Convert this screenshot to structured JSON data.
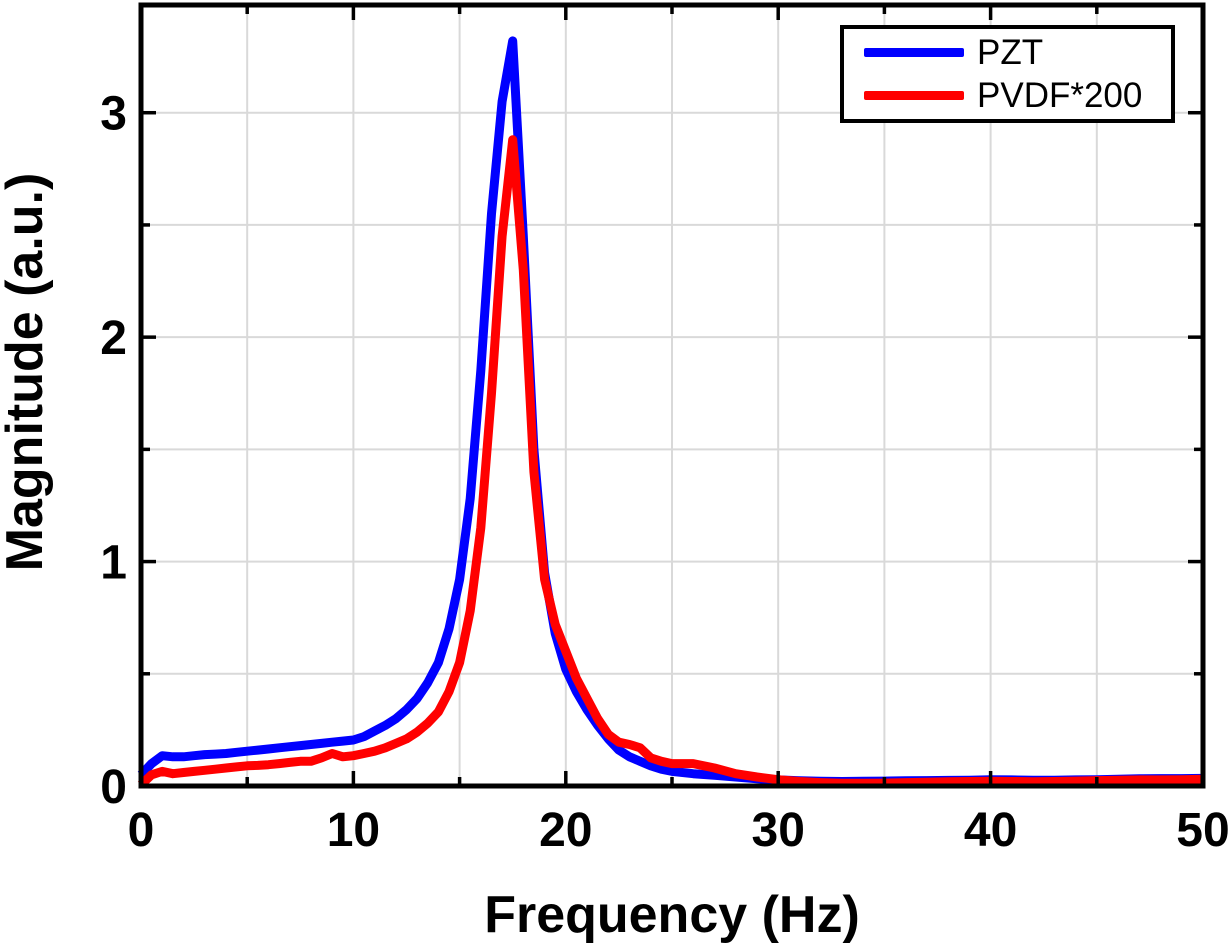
{
  "chart_data": {
    "type": "line",
    "title": "",
    "xlabel": "Frequency (Hz)",
    "ylabel": "Magnitude (a.u.)",
    "xlim": [
      0,
      50
    ],
    "ylim": [
      0,
      3.48
    ],
    "grid": true,
    "legend_position": "top-right",
    "colors": {
      "pzt": "#0000ff",
      "pvdf": "#ff0000",
      "grid": "#d9d9d9",
      "frame": "#000000",
      "background": "#ffffff"
    },
    "axes": {
      "x_major": [
        0,
        10,
        20,
        30,
        40,
        50
      ],
      "x_labels": [
        "0",
        "10",
        "20",
        "30",
        "40",
        "50"
      ],
      "x_minor": [
        5,
        15,
        25,
        35,
        45
      ],
      "x_grid": [
        5,
        10,
        15,
        20,
        25,
        30,
        35,
        40,
        45
      ],
      "y_major": [
        0,
        1,
        2,
        3
      ],
      "y_labels": [
        "0",
        "1",
        "2",
        "3"
      ],
      "y_minor": [
        0.5,
        1.5,
        2.5
      ],
      "y_grid": [
        0.5,
        1,
        1.5,
        2,
        2.5,
        3
      ]
    },
    "x": [
      0,
      0.5,
      1,
      1.5,
      2,
      2.5,
      3,
      3.5,
      4,
      4.5,
      5,
      5.5,
      6,
      6.5,
      7,
      7.5,
      8,
      8.5,
      9,
      9.5,
      10,
      10.5,
      11,
      11.5,
      12,
      12.5,
      13,
      13.5,
      14,
      14.5,
      15,
      15.5,
      16,
      16.5,
      17,
      17.5,
      18,
      18.5,
      19,
      19.5,
      20,
      20.5,
      21,
      21.5,
      22,
      22.5,
      23,
      23.5,
      24,
      24.5,
      25,
      26,
      27,
      28,
      29,
      30,
      31,
      32,
      33,
      34,
      35,
      36,
      37,
      38,
      39,
      40,
      41,
      42,
      43,
      44,
      45,
      46,
      47,
      48,
      49,
      50
    ],
    "series": [
      {
        "name": "PZT",
        "color": "#0000ff",
        "values": [
          0.05,
          0.1,
          0.135,
          0.13,
          0.13,
          0.135,
          0.14,
          0.142,
          0.145,
          0.15,
          0.155,
          0.16,
          0.165,
          0.17,
          0.175,
          0.18,
          0.185,
          0.19,
          0.195,
          0.2,
          0.205,
          0.22,
          0.245,
          0.27,
          0.3,
          0.34,
          0.39,
          0.46,
          0.55,
          0.7,
          0.92,
          1.28,
          1.85,
          2.55,
          3.05,
          3.32,
          2.45,
          1.5,
          0.95,
          0.68,
          0.52,
          0.42,
          0.34,
          0.27,
          0.21,
          0.16,
          0.13,
          0.11,
          0.09,
          0.075,
          0.065,
          0.055,
          0.048,
          0.04,
          0.032,
          0.027,
          0.023,
          0.021,
          0.02,
          0.021,
          0.022,
          0.023,
          0.024,
          0.025,
          0.026,
          0.028,
          0.027,
          0.026,
          0.026,
          0.027,
          0.028,
          0.03,
          0.032,
          0.033,
          0.033,
          0.034
        ]
      },
      {
        "name": "PVDF*200",
        "color": "#ff0000",
        "values": [
          0.005,
          0.05,
          0.065,
          0.055,
          0.06,
          0.065,
          0.07,
          0.075,
          0.08,
          0.085,
          0.09,
          0.092,
          0.095,
          0.1,
          0.105,
          0.11,
          0.11,
          0.125,
          0.145,
          0.13,
          0.135,
          0.145,
          0.155,
          0.17,
          0.19,
          0.21,
          0.24,
          0.28,
          0.33,
          0.42,
          0.55,
          0.78,
          1.15,
          1.75,
          2.45,
          2.88,
          2.3,
          1.4,
          0.92,
          0.72,
          0.6,
          0.48,
          0.39,
          0.3,
          0.23,
          0.195,
          0.185,
          0.17,
          0.125,
          0.11,
          0.1,
          0.1,
          0.08,
          0.055,
          0.04,
          0.028,
          0.02,
          0.015,
          0.012,
          0.012,
          0.013,
          0.015,
          0.017,
          0.019,
          0.02,
          0.021,
          0.02,
          0.019,
          0.02,
          0.022,
          0.024,
          0.026,
          0.027,
          0.027,
          0.028,
          0.03
        ]
      }
    ],
    "peaks": {
      "pzt_peak": {
        "x": 17.5,
        "y": 3.32
      },
      "pvdf_peak": {
        "x": 17.5,
        "y": 2.88
      }
    }
  },
  "legend": {
    "items": [
      {
        "label": "PZT"
      },
      {
        "label": "PVDF*200"
      }
    ]
  }
}
